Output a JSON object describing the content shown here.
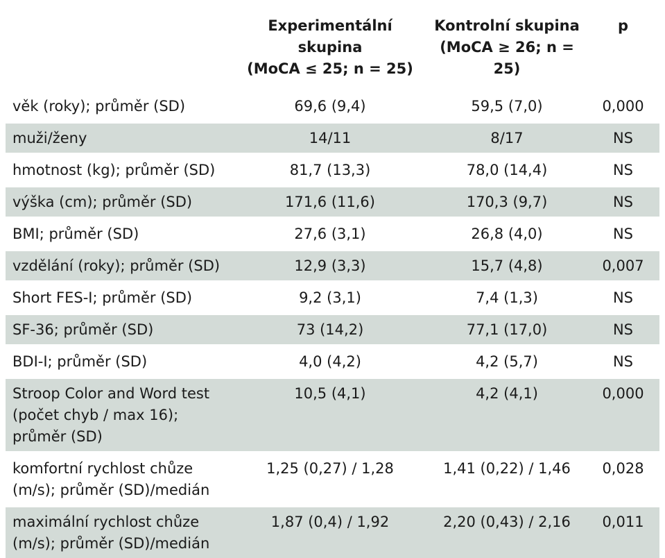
{
  "table": {
    "headers": [
      "",
      "Experimentální\nskupina\n(MoCA ≤ 25; n = 25)",
      "Kontrolní skupina\n(MoCA ≥ 26; n = 25)",
      "p"
    ],
    "rows": [
      [
        "věk (roky); průměr (SD)",
        "69,6 (9,4)",
        "59,5 (7,0)",
        "0,000"
      ],
      [
        "muži/ženy",
        "14/11",
        "8/17",
        "NS"
      ],
      [
        "hmotnost (kg); průměr (SD)",
        "81,7 (13,3)",
        "78,0 (14,4)",
        "NS"
      ],
      [
        "výška (cm); průměr (SD)",
        "171,6 (11,6)",
        "170,3 (9,7)",
        "NS"
      ],
      [
        "BMI; průměr (SD)",
        "27,6 (3,1)",
        "26,8 (4,0)",
        "NS"
      ],
      [
        "vzdělání (roky); průměr (SD)",
        "12,9 (3,3)",
        "15,7 (4,8)",
        "0,007"
      ],
      [
        "Short FES-I; průměr (SD)",
        "9,2 (3,1)",
        "7,4 (1,3)",
        "NS"
      ],
      [
        "SF-36; průměr (SD)",
        "73 (14,2)",
        "77,1 (17,0)",
        "NS"
      ],
      [
        "BDI-I; průměr (SD)",
        "4,0 (4,2)",
        "4,2 (5,7)",
        "NS"
      ],
      [
        "Stroop Color and Word test\n(počet chyb / max 16);\nprůměr (SD)",
        "10,5 (4,1)",
        "4,2 (4,1)",
        "0,000"
      ],
      [
        "komfortní rychlost chůze\n(m/s); průměr (SD)/medián",
        "1,25 (0,27) / 1,28",
        "1,41 (0,22) / 1,46",
        "0,028"
      ],
      [
        "maximální rychlost chůze\n(m/s); průměr (SD)/medián",
        "1,87 (0,4) / 1,92",
        "2,20 (0,43) / 2,16",
        "0,011"
      ]
    ],
    "row_shading": [
      false,
      true,
      false,
      true,
      false,
      true,
      false,
      true,
      false,
      true,
      false,
      true
    ],
    "colors": {
      "shaded_row": "#d3dbd7",
      "text": "#1a1a1a",
      "background": "#ffffff"
    }
  }
}
